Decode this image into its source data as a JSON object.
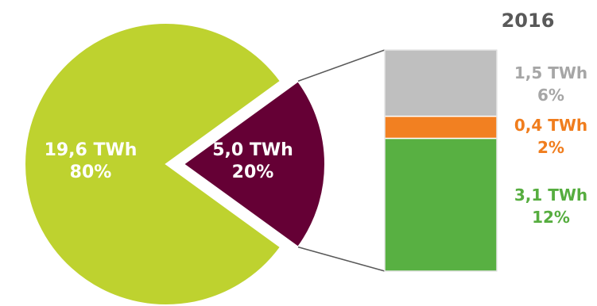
{
  "chart_data": {
    "type": "bar-of-pie",
    "title": "2016",
    "pie": {
      "slices": [
        {
          "value": "19,6 TWh",
          "percent": "80%",
          "share": 80,
          "color": "#bed22f"
        },
        {
          "value": "5,0 TWh",
          "percent": "20%",
          "share": 20,
          "color": "#650035",
          "exploded": true
        }
      ]
    },
    "bar": {
      "segments": [
        {
          "value": "1,5 TWh",
          "percent": "6%",
          "share": 6,
          "color": "#bfbfbf",
          "label_color": "#a6a6a6"
        },
        {
          "value": "0,4 TWh",
          "percent": "2%",
          "share": 2,
          "color": "#f28021",
          "label_color": "#f07d1d"
        },
        {
          "value": "3,1 TWh",
          "percent": "12%",
          "share": 12,
          "color": "#58b042",
          "label_color": "#56ad3f"
        }
      ]
    }
  }
}
